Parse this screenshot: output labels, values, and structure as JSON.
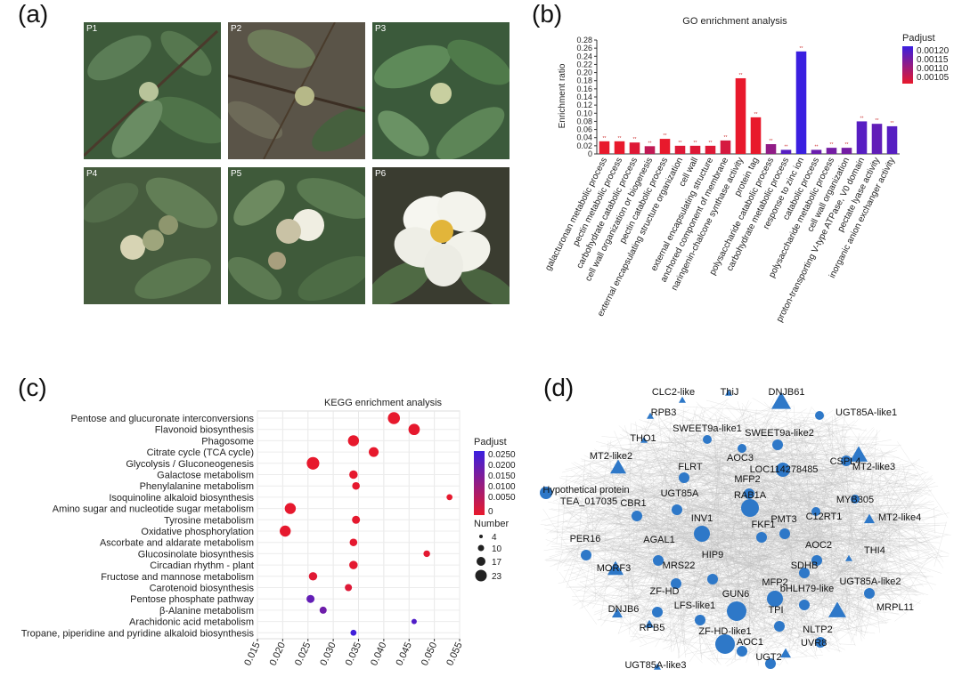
{
  "panels": {
    "a": "(a)",
    "b": "(b)",
    "c": "(c)",
    "d": "(d)"
  },
  "photos": [
    "P1",
    "P2",
    "P3",
    "P4",
    "P5",
    "P6"
  ],
  "chart_data": [
    {
      "type": "bar",
      "title": "GO enrichment analysis",
      "ylabel": "Enrichment ratio",
      "ylim": [
        0,
        0.28
      ],
      "yticks": [
        "0",
        "0.02",
        "0.04",
        "0.06",
        "0.08",
        "0.10",
        "0.12",
        "0.14",
        "0.16",
        "0.18",
        "0.20",
        "0.22",
        "0.24",
        "0.26",
        "0.28"
      ],
      "categories": [
        "galacturonan metabolic process",
        "pectin metabolic process",
        "carbohydrate catabolic process",
        "cell wall organization or biogenesis",
        "pectin catabolic process",
        "external encapsulating structure organization",
        "cell wall",
        "external encapsulating structure",
        "anchored component of membrane",
        "naringenin-chalcone synthase activity",
        "protein tag",
        "polysaccharide catabolic process",
        "carbohydrate metabolic process",
        "response to zinc ion",
        "catabolic process",
        "polysaccharide metabolic process",
        "cell wall organization",
        "proton-transporting V-type ATPase, V0 domain",
        "pectate lyase activity",
        "inorganic anion exchanger activity"
      ],
      "values": [
        0.031,
        0.031,
        0.028,
        0.019,
        0.037,
        0.02,
        0.02,
        0.02,
        0.033,
        0.186,
        0.09,
        0.024,
        0.01,
        0.252,
        0.01,
        0.015,
        0.015,
        0.08,
        0.074,
        0.068
      ],
      "padjust": [
        0.00103,
        0.00103,
        0.00104,
        0.00107,
        0.00103,
        0.00104,
        0.00104,
        0.00104,
        0.00105,
        0.00103,
        0.00103,
        0.00112,
        0.00118,
        0.00121,
        0.00116,
        0.00115,
        0.00115,
        0.00118,
        0.00117,
        0.00118
      ],
      "bar_labels": [
        "**",
        "**",
        "**",
        "**",
        "**",
        "**",
        "**",
        "**",
        "**",
        "**",
        "**",
        "**",
        "**",
        "**",
        "**",
        "**",
        "**",
        "**",
        "**",
        "**"
      ],
      "legend": {
        "title": "Padjust",
        "labels": [
          "0.00120",
          "0.00115",
          "0.00110",
          "0.00105"
        ],
        "position": "top-right"
      },
      "colors": {
        "low": "#e8192c",
        "high": "#3a1fe0"
      }
    },
    {
      "type": "scatter",
      "title": "KEGG enrichment analysis",
      "xlim": [
        0.015,
        0.055
      ],
      "xticks": [
        "0.015",
        "0.020",
        "0.025",
        "0.030",
        "0.035",
        "0.040",
        "0.045",
        "0.050",
        "0.055"
      ],
      "categories": [
        "Pentose and glucuronate interconversions",
        "Flavonoid biosynthesis",
        "Phagosome",
        "Citrate cycle (TCA cycle)",
        "Glycolysis / Gluconeogenesis",
        "Galactose metabolism",
        "Phenylalanine metabolism",
        "Isoquinoline alkaloid biosynthesis",
        "Amino sugar and nucleotide sugar metabolism",
        "Tyrosine metabolism",
        "Oxidative phosphorylation",
        "Ascorbate and aldarate metabolism",
        "Glucosinolate biosynthesis",
        "Circadian rhythm - plant",
        "Fructose and mannose metabolism",
        "Carotenoid biosynthesis",
        "Pentose phosphate pathway",
        "β-Alanine metabolism",
        "Arachidonic acid metabolism",
        "Tropane, piperidine and pyridine alkaloid biosynthesis"
      ],
      "x": [
        0.042,
        0.046,
        0.034,
        0.038,
        0.026,
        0.034,
        0.0345,
        0.053,
        0.0215,
        0.0345,
        0.0205,
        0.034,
        0.0485,
        0.034,
        0.026,
        0.033,
        0.0255,
        0.028,
        0.046,
        0.034
      ],
      "number": [
        20,
        17,
        16,
        12,
        22,
        8,
        6,
        3,
        16,
        7,
        16,
        6,
        4,
        8,
        8,
        5,
        7,
        5,
        2,
        3
      ],
      "padjust": [
        0.0002,
        0.0003,
        0.0002,
        0.0002,
        0.0001,
        0.0004,
        0.0004,
        0.0003,
        0.0003,
        0.0005,
        0.0003,
        0.0006,
        0.0009,
        0.0007,
        0.0013,
        0.0018,
        0.023,
        0.021,
        0.026,
        0.029
      ],
      "legend": {
        "color_title": "Padjust",
        "color_labels": [
          "0.0250",
          "0.0200",
          "0.0150",
          "0.0100",
          "0.0050",
          "0"
        ],
        "size_title": "Number",
        "size_labels": [
          "4",
          "10",
          "17",
          "23"
        ],
        "position": "right"
      },
      "colors": {
        "low": "#e8192c",
        "high": "#3a1fe0"
      }
    }
  ],
  "network": {
    "node_color": "#2e78c8",
    "nodes": [
      {
        "label": "CLC2-like",
        "shape": "triangle"
      },
      {
        "label": "ThiJ",
        "shape": "triangle"
      },
      {
        "label": "DNJB61",
        "shape": "triangle"
      },
      {
        "label": "UGT85A-like1",
        "shape": "circle"
      },
      {
        "label": "RPB3",
        "shape": "triangle"
      },
      {
        "label": "SWEET9a-like1",
        "shape": "circle"
      },
      {
        "label": "SWEET9a-like2",
        "shape": "circle"
      },
      {
        "label": "THO1",
        "shape": "triangle"
      },
      {
        "label": "MT2-like2",
        "shape": "triangle"
      },
      {
        "label": "AOC3",
        "shape": "circle"
      },
      {
        "label": "FLRT",
        "shape": "circle"
      },
      {
        "label": "LOC114278485",
        "shape": "circle"
      },
      {
        "label": "CSPL4",
        "shape": "circle"
      },
      {
        "label": "MT2-like3",
        "shape": "triangle"
      },
      {
        "label": "Hypothetical protein",
        "shape": "circle"
      },
      {
        "label": "TEA_017035",
        "shape": "none"
      },
      {
        "label": "MFP2",
        "shape": "circle"
      },
      {
        "label": "MYB305",
        "shape": "circle"
      },
      {
        "label": "UGT85A",
        "shape": "circle"
      },
      {
        "label": "RAB1A",
        "shape": "circle"
      },
      {
        "label": "CBR1",
        "shape": "circle"
      },
      {
        "label": "C12RT1",
        "shape": "circle"
      },
      {
        "label": "MT2-like4",
        "shape": "triangle"
      },
      {
        "label": "PMT3",
        "shape": "circle"
      },
      {
        "label": "INV1",
        "shape": "circle"
      },
      {
        "label": "FKF1",
        "shape": "circle"
      },
      {
        "label": "PER16",
        "shape": "circle"
      },
      {
        "label": "AGAL1",
        "shape": "circle"
      },
      {
        "label": "AOC2",
        "shape": "circle"
      },
      {
        "label": "THI4",
        "shape": "triangle"
      },
      {
        "label": "SDHB",
        "shape": "circle"
      },
      {
        "label": "HIP9",
        "shape": "circle"
      },
      {
        "label": "MORF3",
        "shape": "triangle"
      },
      {
        "label": "MRS22",
        "shape": "circle"
      },
      {
        "label": "MFP2",
        "shape": "circle"
      },
      {
        "label": "UGT85A-like2",
        "shape": "circle"
      },
      {
        "label": "bHLH79-like",
        "shape": "circle"
      },
      {
        "label": "ZF-HD",
        "shape": "circle"
      },
      {
        "label": "GUN6",
        "shape": "circle"
      },
      {
        "label": "DNJB6",
        "shape": "triangle"
      },
      {
        "label": "LFS-like1",
        "shape": "circle"
      },
      {
        "label": "TPI",
        "shape": "circle"
      },
      {
        "label": "MRPL11",
        "shape": "triangle"
      },
      {
        "label": "RPB5",
        "shape": "triangle"
      },
      {
        "label": "ZF-HD-like1",
        "shape": "circle"
      },
      {
        "label": "NLTP2",
        "shape": "circle"
      },
      {
        "label": "AOC1",
        "shape": "circle"
      },
      {
        "label": "UGT85A-like3",
        "shape": "triangle"
      },
      {
        "label": "UGT2",
        "shape": "circle"
      },
      {
        "label": "UVR8",
        "shape": "triangle"
      }
    ]
  }
}
